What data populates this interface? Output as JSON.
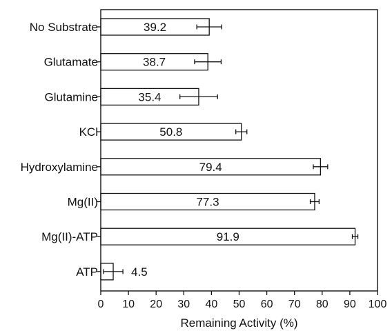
{
  "chart_data": {
    "type": "bar",
    "orientation": "horizontal",
    "categories": [
      "No Substrate",
      "Glutamate",
      "Glutamine",
      "KCl",
      "Hydroxylamine",
      "Mg(II)",
      "Mg(II)-ATP",
      "ATP"
    ],
    "values": [
      39.2,
      38.7,
      35.4,
      50.8,
      79.4,
      77.3,
      91.9,
      4.5
    ],
    "value_labels": [
      "39.2",
      "38.7",
      "35.4",
      "50.8",
      "79.4",
      "77.3",
      "91.9",
      "4.5"
    ],
    "errors": [
      4.5,
      4.8,
      6.8,
      2.0,
      2.6,
      1.6,
      1.0,
      3.5
    ],
    "xlabel": "Remaining Activity (%)",
    "xlim": [
      0,
      100
    ],
    "xticks": [
      0,
      10,
      20,
      30,
      40,
      50,
      60,
      70,
      80,
      90,
      100
    ],
    "xtick_labels": [
      "0",
      "10",
      "20",
      "30",
      "40",
      "50",
      "60",
      "70",
      "80",
      "90",
      "100"
    ],
    "grid": false,
    "colors": {
      "bar_fill": "#ffffff",
      "stroke": "#111111",
      "background": "#ffffff"
    }
  }
}
